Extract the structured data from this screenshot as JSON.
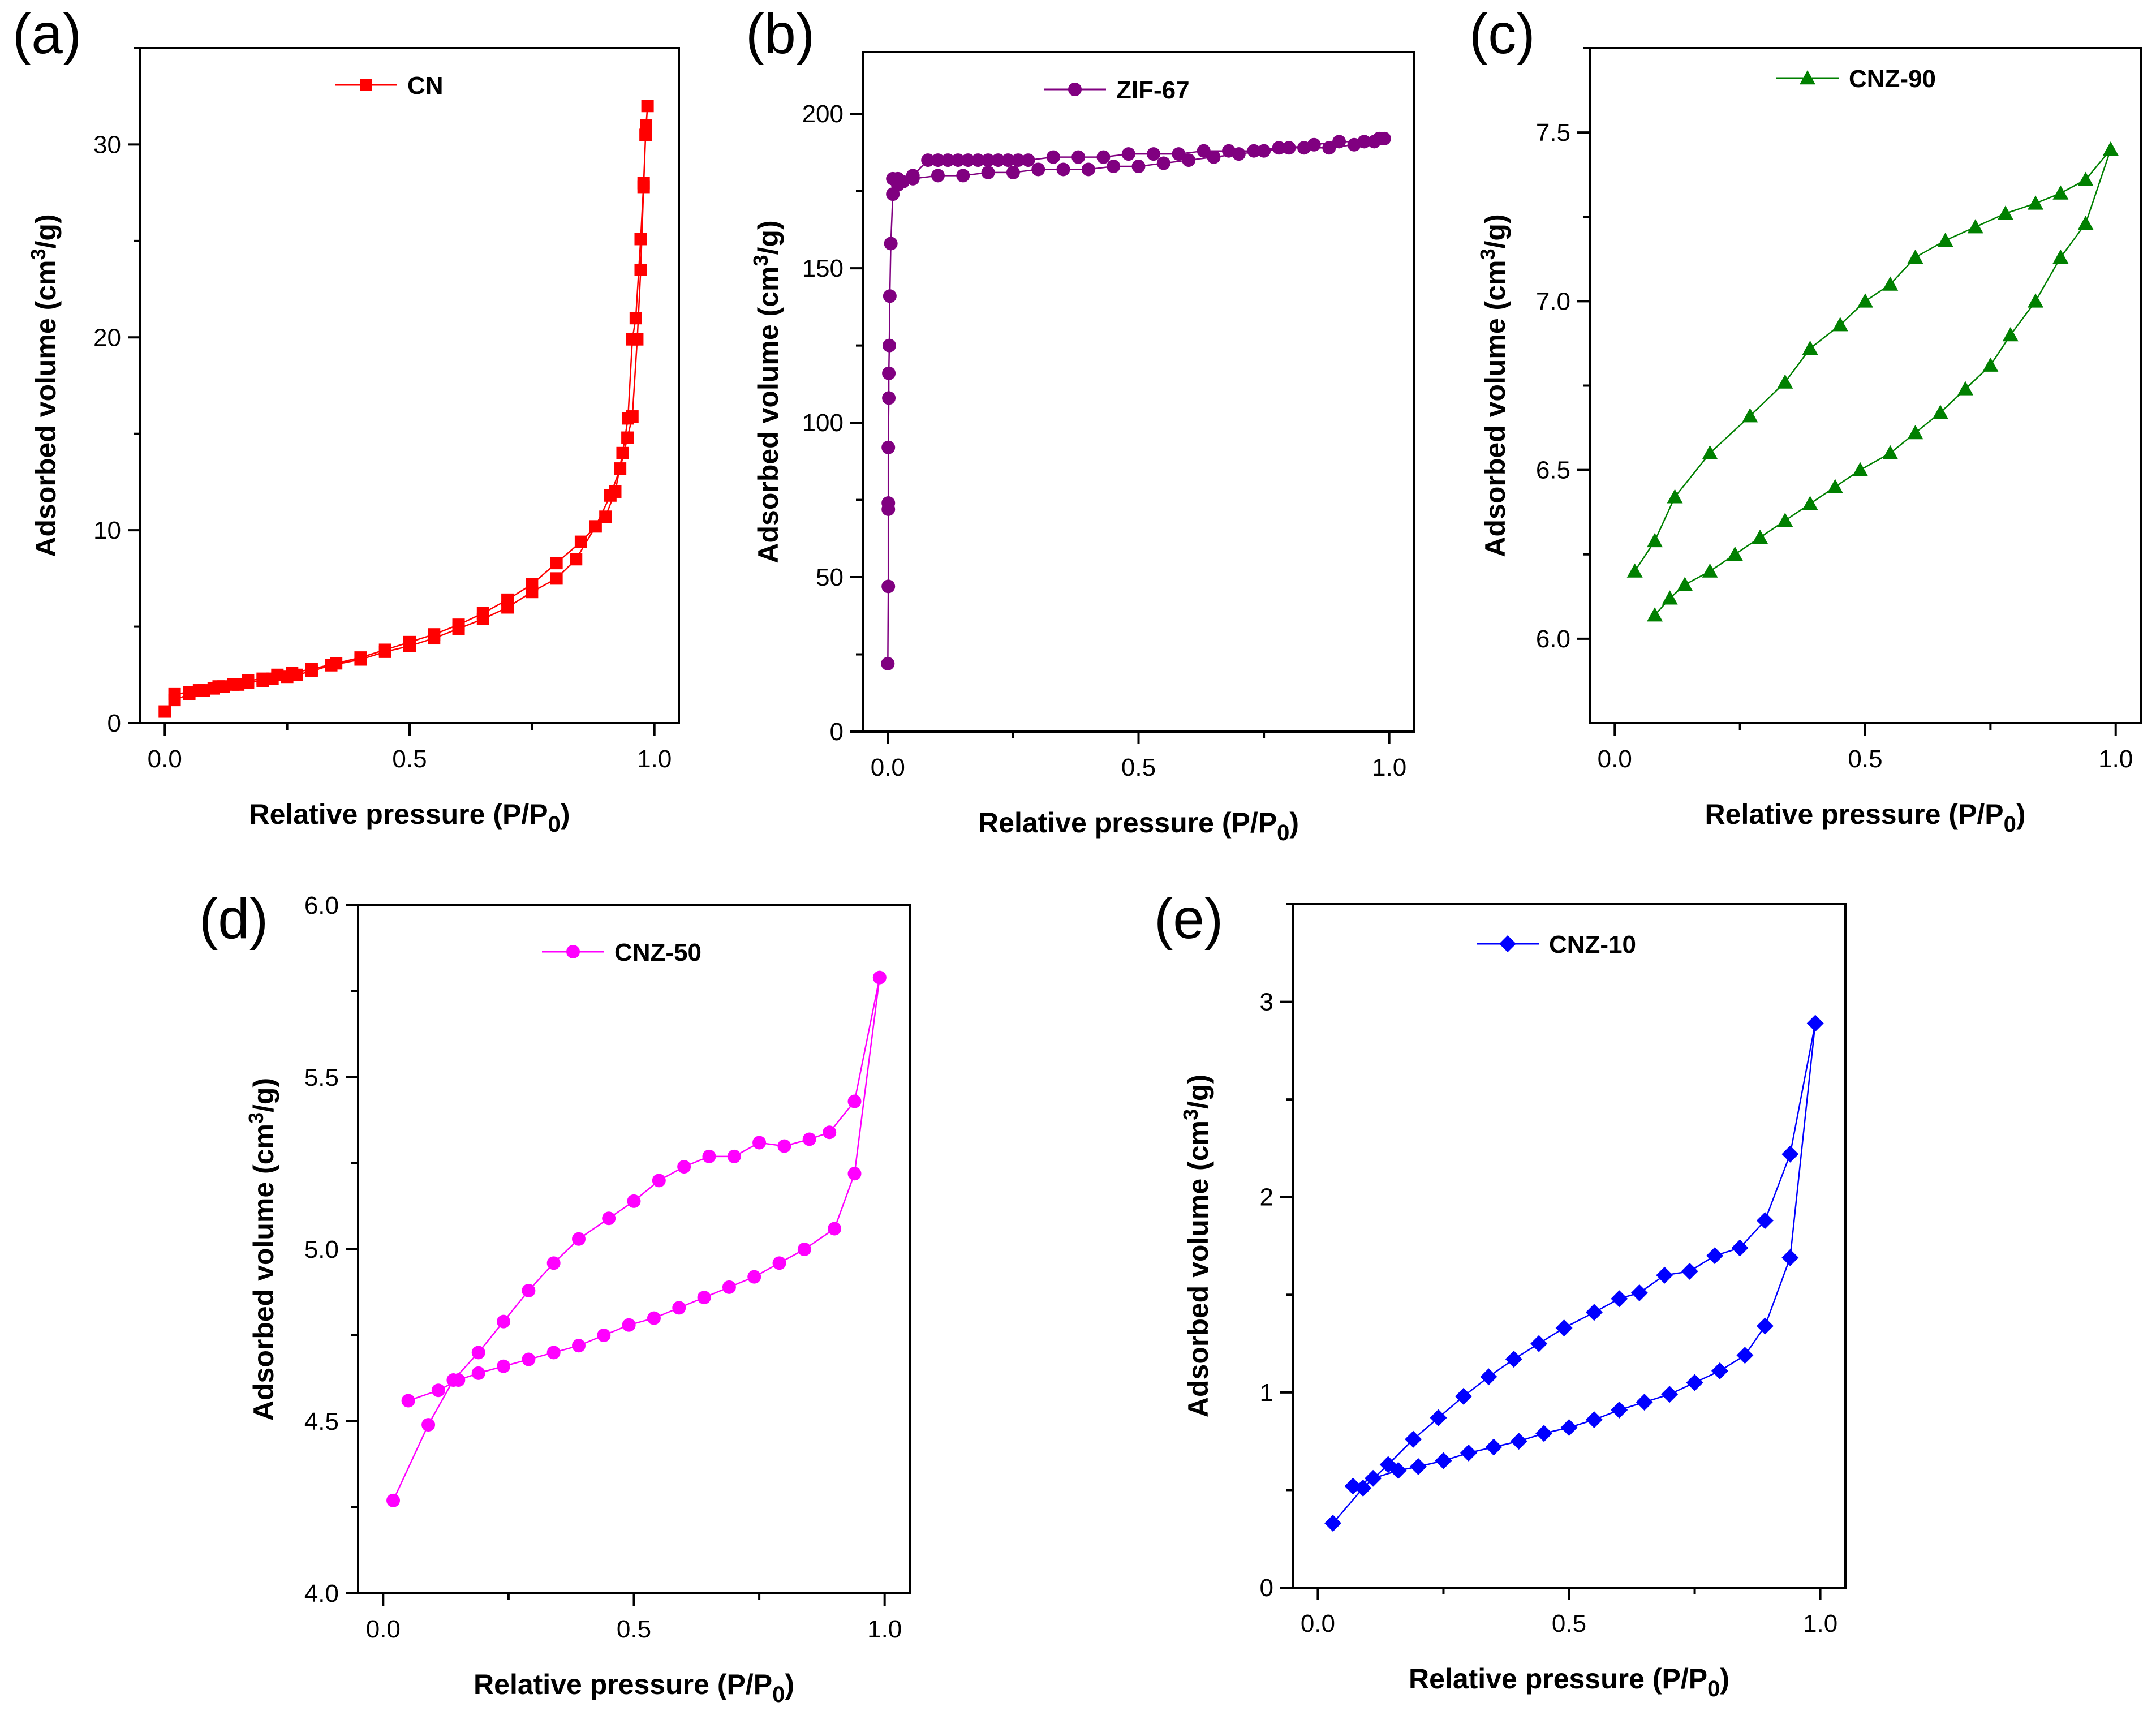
{
  "chart_data": [
    {
      "panel_label": "(a)",
      "type": "line",
      "xlabel": "Relative pressure (P/P",
      "xlabel_sub": "0",
      "xlabel_end": ")",
      "ylabel": "Adsorbed volume (cm",
      "ylabel_sup": "3",
      "ylabel_end": "/g)",
      "xlim": [
        -0.05,
        1.05
      ],
      "ylim": [
        0,
        35
      ],
      "xticks": [
        0.0,
        0.5,
        1.0
      ],
      "xtick_labels": [
        "0.0",
        "0.5",
        "1.0"
      ],
      "yticks": [
        0,
        10,
        20,
        30
      ],
      "ytick_labels": [
        "0",
        "10",
        "20",
        "30"
      ],
      "legend_position": "top-center",
      "series": [
        {
          "name": "CN",
          "color": "#ff0000",
          "marker": "square",
          "x": [
            0.0,
            0.02,
            0.05,
            0.07,
            0.1,
            0.12,
            0.15,
            0.17,
            0.2,
            0.22,
            0.25,
            0.27,
            0.3,
            0.34,
            0.4,
            0.45,
            0.5,
            0.55,
            0.6,
            0.65,
            0.7,
            0.75,
            0.8,
            0.84,
            0.88,
            0.91,
            0.93,
            0.945,
            0.955,
            0.965,
            0.972,
            0.978,
            0.982,
            0.986,
            0.983,
            0.978,
            0.972,
            0.962,
            0.955,
            0.946,
            0.935,
            0.92,
            0.9,
            0.85,
            0.8,
            0.75,
            0.7,
            0.65,
            0.6,
            0.55,
            0.5,
            0.45,
            0.4,
            0.35,
            0.3,
            0.26,
            0.23,
            0.2,
            0.17,
            0.14,
            0.11,
            0.08,
            0.05,
            0.02
          ],
          "y": [
            0.6,
            1.2,
            1.5,
            1.7,
            1.8,
            1.9,
            2.0,
            2.1,
            2.2,
            2.3,
            2.4,
            2.5,
            2.7,
            3.0,
            3.3,
            3.7,
            4.0,
            4.4,
            4.9,
            5.4,
            6.0,
            6.8,
            7.5,
            8.5,
            10.2,
            11.8,
            13.2,
            14.8,
            15.9,
            19.9,
            23.5,
            27.8,
            30.5,
            32.0,
            31.0,
            28.0,
            25.1,
            21.0,
            19.9,
            15.8,
            14.0,
            12.0,
            10.7,
            9.4,
            8.3,
            7.2,
            6.4,
            5.7,
            5.1,
            4.6,
            4.2,
            3.8,
            3.4,
            3.1,
            2.8,
            2.6,
            2.5,
            2.3,
            2.2,
            2.0,
            1.9,
            1.7,
            1.6,
            1.5
          ]
        }
      ]
    },
    {
      "panel_label": "(b)",
      "type": "line",
      "xlabel": "Relative pressure (P/P",
      "xlabel_sub": "0",
      "xlabel_end": ")",
      "ylabel": "Adsorbed volume (cm",
      "ylabel_sup": "3",
      "ylabel_end": "/g)",
      "xlim": [
        -0.05,
        1.05
      ],
      "ylim": [
        0,
        220
      ],
      "xticks": [
        0.0,
        0.5,
        1.0
      ],
      "xtick_labels": [
        "0.0",
        "0.5",
        "1.0"
      ],
      "yticks": [
        0,
        50,
        100,
        150,
        200
      ],
      "ytick_labels": [
        "0",
        "50",
        "100",
        "150",
        "200"
      ],
      "legend_position": "top-center",
      "series": [
        {
          "name": "ZIF-67",
          "color": "#800080",
          "marker": "circle",
          "x": [
            0.0,
            0.001,
            0.001,
            0.001,
            0.001,
            0.002,
            0.002,
            0.003,
            0.004,
            0.006,
            0.01,
            0.02,
            0.03,
            0.05,
            0.1,
            0.15,
            0.2,
            0.25,
            0.3,
            0.35,
            0.4,
            0.45,
            0.5,
            0.55,
            0.6,
            0.65,
            0.7,
            0.75,
            0.8,
            0.85,
            0.9,
            0.95,
            0.98,
            0.99,
            0.97,
            0.93,
            0.88,
            0.83,
            0.78,
            0.73,
            0.68,
            0.63,
            0.58,
            0.53,
            0.48,
            0.43,
            0.38,
            0.33,
            0.28,
            0.26,
            0.24,
            0.22,
            0.2,
            0.18,
            0.16,
            0.14,
            0.12,
            0.1,
            0.08,
            0.05,
            0.02,
            0.01
          ],
          "y": [
            22,
            47,
            72,
            74,
            92,
            108,
            116,
            125,
            141,
            158,
            174,
            177,
            178,
            179,
            180,
            180,
            181,
            181,
            182,
            182,
            182,
            183,
            183,
            184,
            185,
            186,
            187,
            188,
            189,
            190,
            191,
            191,
            192,
            192,
            191,
            190,
            189,
            189,
            189,
            188,
            188,
            188,
            187,
            187,
            187,
            186,
            186,
            186,
            185,
            185,
            185,
            185,
            185,
            185,
            185,
            185,
            185,
            185,
            185,
            180,
            179,
            179
          ]
        }
      ]
    },
    {
      "panel_label": "(c)",
      "type": "line",
      "xlabel": "Relative pressure (P/P",
      "xlabel_sub": "0",
      "xlabel_end": ")",
      "ylabel": "Adsorbed volume (cm",
      "ylabel_sup": "3",
      "ylabel_end": "/g)",
      "xlim": [
        -0.05,
        1.05
      ],
      "ylim": [
        5.75,
        7.75
      ],
      "xticks": [
        0.0,
        0.5,
        1.0
      ],
      "xtick_labels": [
        "0.0",
        "0.5",
        "1.0"
      ],
      "yticks": [
        6.0,
        6.5,
        7.0,
        7.5
      ],
      "ytick_labels": [
        "6.0",
        "6.5",
        "7.0",
        "7.5"
      ],
      "legend_position": "top-center",
      "series": [
        {
          "name": "CNZ-90",
          "color": "#008000",
          "marker": "triangle",
          "x": [
            0.04,
            0.08,
            0.12,
            0.19,
            0.27,
            0.34,
            0.39,
            0.45,
            0.5,
            0.55,
            0.6,
            0.66,
            0.72,
            0.78,
            0.84,
            0.89,
            0.94,
            0.99,
            0.94,
            0.89,
            0.84,
            0.79,
            0.75,
            0.7,
            0.65,
            0.6,
            0.55,
            0.49,
            0.44,
            0.39,
            0.34,
            0.29,
            0.24,
            0.19,
            0.14,
            0.11,
            0.08
          ],
          "y": [
            6.2,
            6.29,
            6.42,
            6.55,
            6.66,
            6.76,
            6.86,
            6.93,
            7.0,
            7.05,
            7.13,
            7.18,
            7.22,
            7.26,
            7.29,
            7.32,
            7.36,
            7.45,
            7.23,
            7.13,
            7.0,
            6.9,
            6.81,
            6.74,
            6.67,
            6.61,
            6.55,
            6.5,
            6.45,
            6.4,
            6.35,
            6.3,
            6.25,
            6.2,
            6.16,
            6.12,
            6.07
          ]
        }
      ]
    },
    {
      "panel_label": "(d)",
      "type": "line",
      "xlabel": "Relative pressure (P/P",
      "xlabel_sub": "0",
      "xlabel_end": ")",
      "ylabel": "Adsorbed volume (cm",
      "ylabel_sup": "3",
      "ylabel_end": "/g)",
      "xlim": [
        -0.05,
        1.05
      ],
      "ylim": [
        4.0,
        6.0
      ],
      "xticks": [
        0.0,
        0.5,
        1.0
      ],
      "xtick_labels": [
        "0.0",
        "0.5",
        "1.0"
      ],
      "yticks": [
        4.0,
        4.5,
        5.0,
        5.5,
        6.0
      ],
      "ytick_labels": [
        "4.0",
        "4.5",
        "5.0",
        "5.5",
        "6.0"
      ],
      "legend_position": "top-center",
      "series": [
        {
          "name": "CNZ-50",
          "color": "#ff00ff",
          "marker": "circle",
          "x": [
            0.02,
            0.09,
            0.14,
            0.19,
            0.24,
            0.29,
            0.34,
            0.39,
            0.45,
            0.5,
            0.55,
            0.6,
            0.65,
            0.7,
            0.75,
            0.8,
            0.85,
            0.89,
            0.94,
            0.99,
            0.94,
            0.9,
            0.84,
            0.79,
            0.74,
            0.69,
            0.64,
            0.59,
            0.54,
            0.49,
            0.44,
            0.39,
            0.34,
            0.29,
            0.24,
            0.19,
            0.15,
            0.11,
            0.05
          ],
          "y": [
            4.27,
            4.49,
            4.62,
            4.7,
            4.79,
            4.88,
            4.96,
            5.03,
            5.09,
            5.14,
            5.2,
            5.24,
            5.27,
            5.27,
            5.31,
            5.3,
            5.32,
            5.34,
            5.43,
            5.79,
            5.22,
            5.06,
            5.0,
            4.96,
            4.92,
            4.89,
            4.86,
            4.83,
            4.8,
            4.78,
            4.75,
            4.72,
            4.7,
            4.68,
            4.66,
            4.64,
            4.62,
            4.59,
            4.56
          ]
        }
      ]
    },
    {
      "panel_label": "(e)",
      "type": "line",
      "xlabel": "Relative pressure (P/P",
      "xlabel_sub": "0",
      "xlabel_end": ")",
      "ylabel": "Adsorbed volume (cm",
      "ylabel_sup": "3",
      "ylabel_end": "/g)",
      "xlim": [
        -0.05,
        1.05
      ],
      "ylim": [
        0,
        3.5
      ],
      "xticks": [
        0.0,
        0.5,
        1.0
      ],
      "xtick_labels": [
        "0.0",
        "0.5",
        "1.0"
      ],
      "yticks": [
        0,
        1,
        2,
        3
      ],
      "ytick_labels": [
        "0",
        "1",
        "2",
        "3"
      ],
      "legend_position": "top-center",
      "series": [
        {
          "name": "CNZ-10",
          "color": "#0000ff",
          "marker": "diamond",
          "x": [
            0.03,
            0.09,
            0.14,
            0.19,
            0.24,
            0.29,
            0.34,
            0.39,
            0.44,
            0.49,
            0.55,
            0.6,
            0.64,
            0.69,
            0.74,
            0.79,
            0.84,
            0.89,
            0.94,
            0.99,
            0.94,
            0.89,
            0.85,
            0.8,
            0.75,
            0.7,
            0.65,
            0.6,
            0.55,
            0.5,
            0.45,
            0.4,
            0.35,
            0.3,
            0.25,
            0.2,
            0.16,
            0.11,
            0.07
          ],
          "y": [
            0.33,
            0.51,
            0.63,
            0.76,
            0.87,
            0.98,
            1.08,
            1.17,
            1.25,
            1.33,
            1.41,
            1.48,
            1.51,
            1.6,
            1.62,
            1.7,
            1.74,
            1.88,
            2.22,
            2.89,
            1.69,
            1.34,
            1.19,
            1.11,
            1.05,
            0.99,
            0.95,
            0.91,
            0.86,
            0.82,
            0.79,
            0.75,
            0.72,
            0.69,
            0.65,
            0.62,
            0.6,
            0.56,
            0.52
          ]
        }
      ]
    }
  ]
}
